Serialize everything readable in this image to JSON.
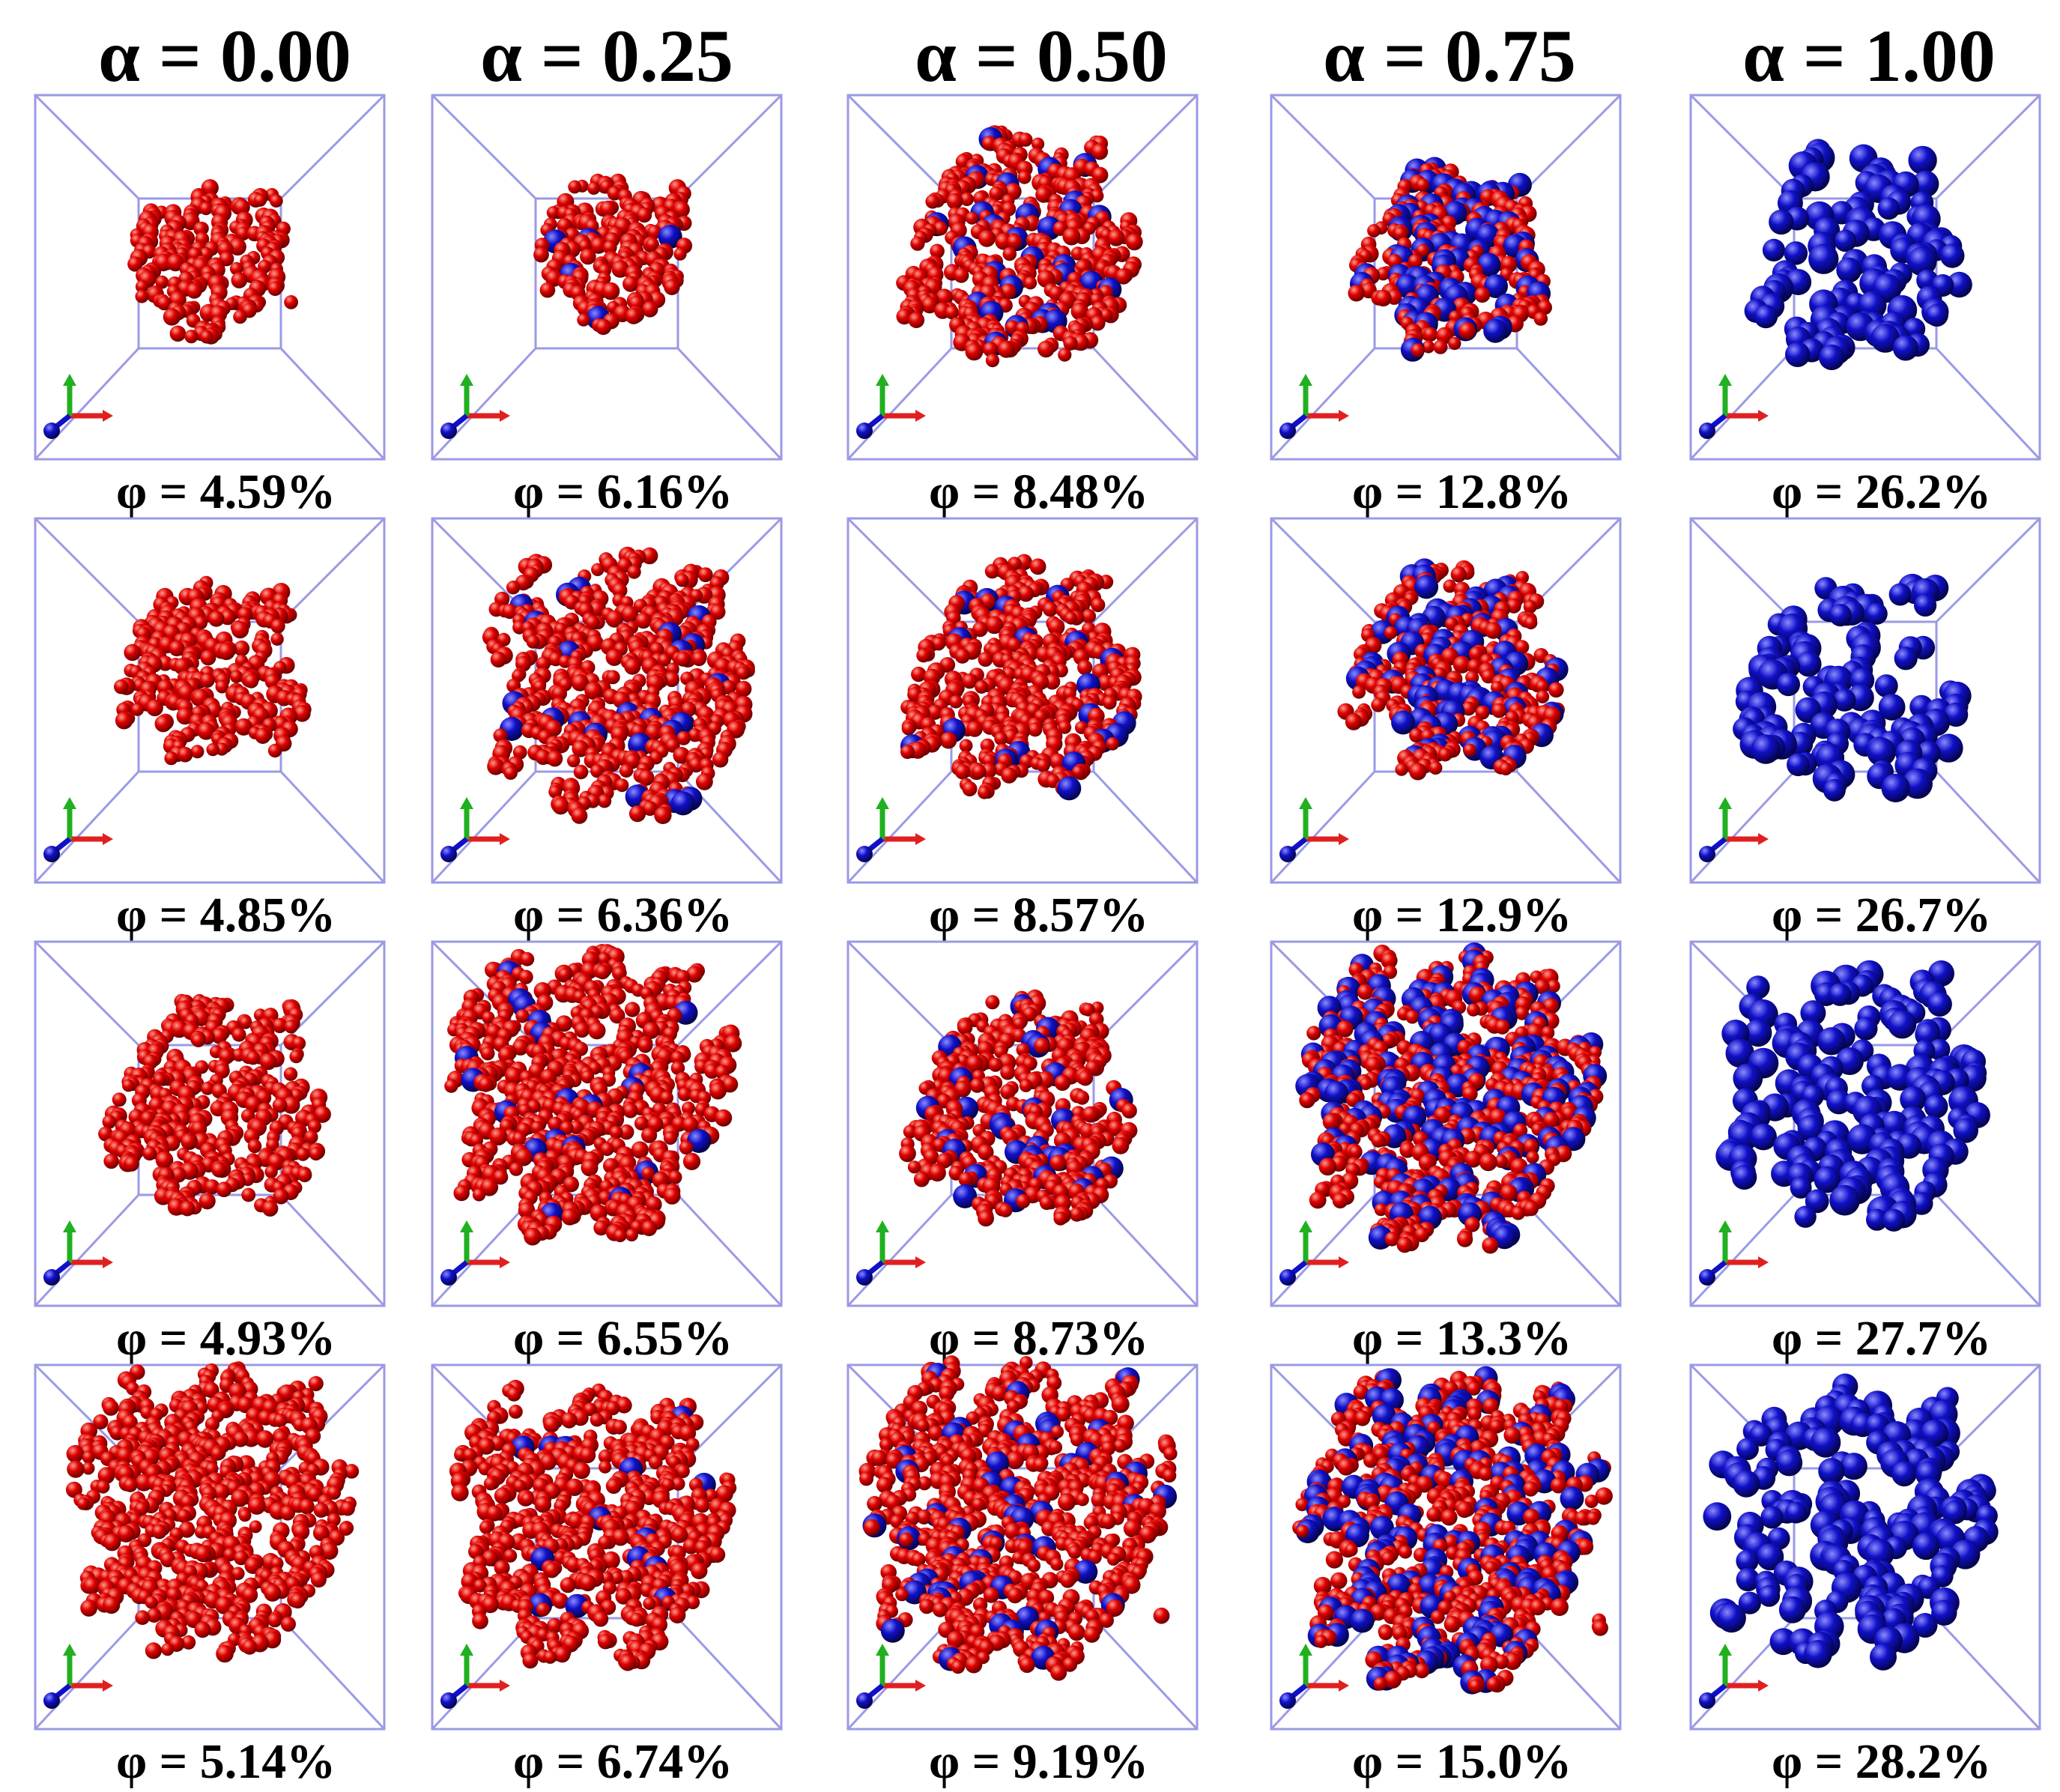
{
  "columns": [
    {
      "alpha_label": "α = 0.00",
      "alpha": 0.0,
      "blue_fraction": 0.0
    },
    {
      "alpha_label": "α = 0.25",
      "alpha": 0.25,
      "blue_fraction": 0.03
    },
    {
      "alpha_label": "α = 0.50",
      "alpha": 0.5,
      "blue_fraction": 0.07
    },
    {
      "alpha_label": "α = 0.75",
      "alpha": 0.75,
      "blue_fraction": 0.22
    },
    {
      "alpha_label": "α = 1.00",
      "alpha": 1.0,
      "blue_fraction": 1.0
    }
  ],
  "rows": [
    {
      "phi": [
        "φ = 4.59%",
        "φ = 6.16%",
        "φ = 8.48%",
        "φ = 12.8%",
        "φ = 26.2%"
      ],
      "cluster_fill": [
        0.3,
        0.28,
        0.62,
        0.42,
        0.55
      ]
    },
    {
      "phi": [
        "φ = 4.85%",
        "φ = 6.36%",
        "φ = 8.57%",
        "φ = 12.9%",
        "φ = 26.7%"
      ],
      "cluster_fill": [
        0.4,
        0.75,
        0.62,
        0.52,
        0.58
      ]
    },
    {
      "phi": [
        "φ = 4.93%",
        "φ = 6.55%",
        "φ = 8.73%",
        "φ = 13.3%",
        "φ = 27.7%"
      ],
      "cluster_fill": [
        0.55,
        0.85,
        0.58,
        0.88,
        0.75
      ]
    },
    {
      "phi": [
        "φ = 5.14%",
        "φ = 6.74%",
        "φ = 9.19%",
        "φ = 15.0%",
        "φ = 28.2%"
      ],
      "cluster_fill": [
        0.85,
        0.8,
        0.95,
        0.95,
        0.82
      ]
    }
  ],
  "colors": {
    "particle_red": "#e00000",
    "particle_blue": "#1010c8",
    "box_line": "#9a9ae6",
    "axis_x": "#e02020",
    "axis_y": "#20b020",
    "axis_z": "#1010c8"
  }
}
